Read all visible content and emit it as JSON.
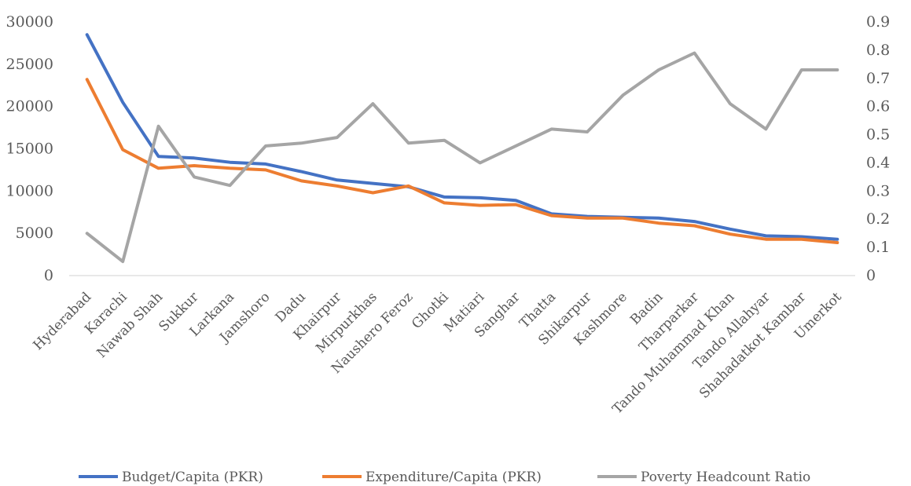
{
  "chart_data": {
    "type": "line",
    "title": "",
    "xlabel": "",
    "ylabel": "",
    "categories": [
      "Hyderabad",
      "Karachi",
      "Nawab Shah",
      "Sukkur",
      "Larkana",
      "Jamshoro",
      "Dadu",
      "Khairpur",
      "Mirpurkhas",
      "Naushero Feroz",
      "Ghotki",
      "Matiari",
      "Sanghar",
      "Thatta",
      "Shikarpur",
      "Kashmore",
      "Badin",
      "Tharparkar",
      "Tando Muhammad Khan",
      "Tando Allahyar",
      "Shahadatkot Kambar",
      "Umerkot"
    ],
    "series": [
      {
        "name": "Budget/Capita (PKR)",
        "axis": "left",
        "color": "#4472C4",
        "values": [
          28500,
          20500,
          14100,
          13900,
          13400,
          13200,
          12300,
          11300,
          10900,
          10500,
          9300,
          9200,
          8900,
          7300,
          7000,
          6900,
          6800,
          6400,
          5500,
          4700,
          4600,
          4300
        ]
      },
      {
        "name": "Expenditure/Capita (PKR)",
        "axis": "left",
        "color": "#ED7D31",
        "values": [
          23200,
          14900,
          12700,
          13000,
          12700,
          12500,
          11200,
          10600,
          9800,
          10600,
          8600,
          8300,
          8400,
          7100,
          6800,
          6800,
          6200,
          5900,
          4900,
          4300,
          4300,
          3900
        ]
      },
      {
        "name": "Poverty Headcount Ratio",
        "axis": "right",
        "color": "#A5A5A5",
        "values": [
          0.15,
          0.05,
          0.53,
          0.35,
          0.32,
          0.46,
          0.47,
          0.49,
          0.61,
          0.47,
          0.48,
          0.4,
          0.46,
          0.52,
          0.51,
          0.64,
          0.73,
          0.79,
          0.61,
          0.52,
          0.73,
          0.73
        ]
      }
    ],
    "y_left": {
      "min": 0,
      "max": 30000,
      "ticks": [
        "0",
        "5000",
        "10000",
        "15000",
        "20000",
        "25000",
        "30000"
      ]
    },
    "y_right": {
      "min": 0,
      "max": 0.9,
      "ticks": [
        "0",
        "0.1",
        "0.2",
        "0.3",
        "0.4",
        "0.5",
        "0.6",
        "0.7",
        "0.8",
        "0.9"
      ]
    },
    "grid": false,
    "legend_position": "bottom"
  }
}
